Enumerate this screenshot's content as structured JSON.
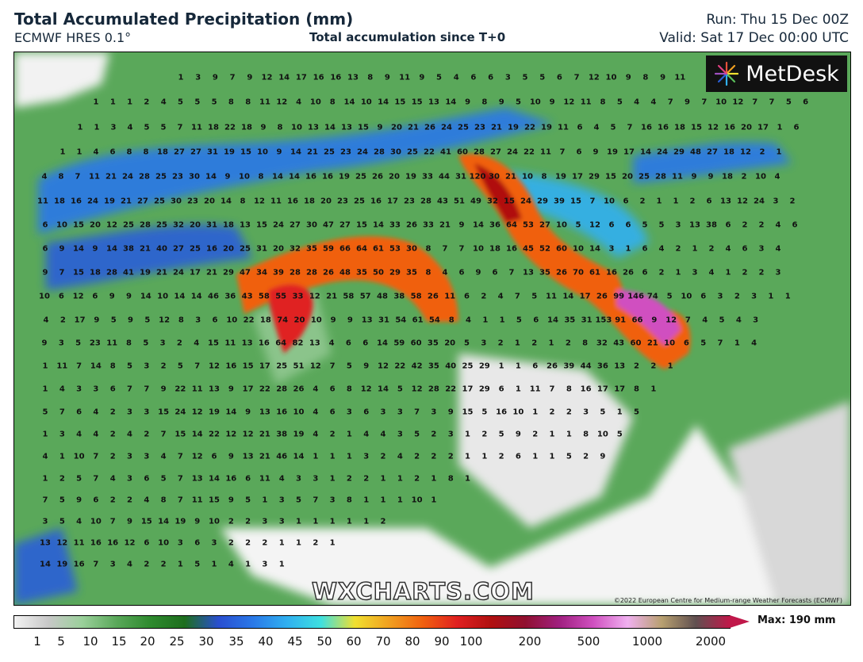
{
  "header": {
    "title": "Total Accumulated Precipitation (mm)",
    "model": "ECMWF HRES 0.1°",
    "subtitle": "Total accumulation since T+0",
    "run": "Run: Thu 15 Dec 00Z",
    "valid": "Valid: Sat 17 Dec 00:00 UTC"
  },
  "logo": {
    "text": "MetDesk",
    "icon": "metdesk-starburst-icon"
  },
  "watermark": "WXCHARTS.COM",
  "copyright": "©2022 European Centre for Medium-range Weather Forecasts (ECMWF)",
  "colorbar": {
    "max_label": "Max: 190 mm",
    "ticks": [
      "1",
      "5",
      "10",
      "15",
      "20",
      "25",
      "30",
      "35",
      "40",
      "45",
      "50",
      "60",
      "70",
      "80",
      "90",
      "100",
      "200",
      "500",
      "1000",
      "2000"
    ],
    "colors": [
      "#f2f2f2",
      "#c8c8c8",
      "#9ad09a",
      "#5aa85a",
      "#2e8a2e",
      "#1e6e1e",
      "#2a4fd0",
      "#2a78e8",
      "#30b0f0",
      "#3ee0e0",
      "#f0e030",
      "#f0a020",
      "#f06010",
      "#e02020",
      "#b01010",
      "#901030",
      "#a02080",
      "#d050c0",
      "#f0b0f0",
      "#b8a070",
      "#605050",
      "#c0184a"
    ]
  },
  "map_values": {
    "rows": [
      [
        "1",
        "3",
        "9",
        "7",
        "9",
        "12",
        "14",
        "17",
        "16",
        "16",
        "13",
        "8",
        "9",
        "11",
        "9",
        "5",
        "4",
        "6",
        "6",
        "3",
        "5",
        "5",
        "6",
        "7",
        "12",
        "10",
        "9",
        "8",
        "9",
        "11"
      ],
      [
        "1",
        "1",
        "1",
        "2",
        "4",
        "5",
        "5",
        "5",
        "8",
        "8",
        "11",
        "12",
        "4",
        "10",
        "8",
        "14",
        "10",
        "14",
        "15",
        "15",
        "13",
        "14",
        "9",
        "8",
        "9",
        "5",
        "10",
        "9",
        "12",
        "11",
        "8",
        "5",
        "4",
        "4",
        "7",
        "9",
        "7",
        "10",
        "12",
        "7",
        "7",
        "5",
        "6"
      ],
      [
        "1",
        "1",
        "3",
        "4",
        "5",
        "5",
        "7",
        "11",
        "18",
        "22",
        "18",
        "9",
        "8",
        "10",
        "13",
        "14",
        "13",
        "15",
        "9",
        "20",
        "21",
        "26",
        "24",
        "25",
        "23",
        "21",
        "19",
        "22",
        "19",
        "11",
        "6",
        "4",
        "5",
        "7",
        "16",
        "16",
        "18",
        "15",
        "12",
        "16",
        "20",
        "17",
        "1",
        "6"
      ],
      [
        "1",
        "1",
        "4",
        "6",
        "8",
        "8",
        "18",
        "27",
        "27",
        "31",
        "19",
        "15",
        "10",
        "9",
        "14",
        "21",
        "25",
        "23",
        "24",
        "28",
        "30",
        "25",
        "22",
        "41",
        "60",
        "28",
        "27",
        "24",
        "22",
        "11",
        "7",
        "6",
        "9",
        "19",
        "17",
        "14",
        "24",
        "29",
        "48",
        "27",
        "18",
        "12",
        "2",
        "1"
      ],
      [
        "4",
        "8",
        "7",
        "11",
        "21",
        "24",
        "28",
        "25",
        "23",
        "30",
        "14",
        "9",
        "10",
        "8",
        "14",
        "14",
        "16",
        "16",
        "19",
        "25",
        "26",
        "20",
        "19",
        "33",
        "44",
        "31",
        "120",
        "30",
        "21",
        "10",
        "8",
        "19",
        "17",
        "29",
        "15",
        "20",
        "25",
        "28",
        "11",
        "9",
        "9",
        "18",
        "2",
        "10",
        "4"
      ],
      [
        "11",
        "18",
        "16",
        "24",
        "19",
        "21",
        "27",
        "25",
        "30",
        "23",
        "20",
        "14",
        "8",
        "12",
        "11",
        "16",
        "18",
        "20",
        "23",
        "25",
        "16",
        "17",
        "23",
        "28",
        "43",
        "51",
        "49",
        "32",
        "15",
        "24",
        "29",
        "39",
        "15",
        "7",
        "10",
        "6",
        "2",
        "1",
        "1",
        "2",
        "6",
        "13",
        "12",
        "24",
        "3",
        "2"
      ],
      [
        "6",
        "10",
        "15",
        "20",
        "12",
        "25",
        "28",
        "25",
        "32",
        "20",
        "31",
        "18",
        "13",
        "15",
        "24",
        "27",
        "30",
        "47",
        "27",
        "15",
        "14",
        "33",
        "26",
        "33",
        "21",
        "9",
        "14",
        "36",
        "64",
        "53",
        "27",
        "10",
        "5",
        "12",
        "6",
        "6",
        "5",
        "5",
        "3",
        "13",
        "38",
        "6",
        "2",
        "2",
        "4",
        "6"
      ],
      [
        "6",
        "9",
        "14",
        "9",
        "14",
        "38",
        "21",
        "40",
        "27",
        "25",
        "16",
        "20",
        "25",
        "31",
        "20",
        "32",
        "35",
        "59",
        "66",
        "64",
        "61",
        "53",
        "30",
        "8",
        "7",
        "7",
        "10",
        "18",
        "16",
        "45",
        "52",
        "60",
        "10",
        "14",
        "3",
        "1",
        "6",
        "4",
        "2",
        "1",
        "2",
        "4",
        "6",
        "3",
        "4"
      ],
      [
        "9",
        "7",
        "15",
        "18",
        "28",
        "41",
        "19",
        "21",
        "24",
        "17",
        "21",
        "29",
        "47",
        "34",
        "39",
        "28",
        "28",
        "26",
        "48",
        "35",
        "50",
        "29",
        "35",
        "8",
        "4",
        "6",
        "9",
        "6",
        "7",
        "13",
        "35",
        "26",
        "70",
        "61",
        "16",
        "26",
        "6",
        "2",
        "1",
        "3",
        "4",
        "1",
        "2",
        "2",
        "3"
      ],
      [
        "10",
        "6",
        "12",
        "6",
        "9",
        "9",
        "14",
        "10",
        "14",
        "14",
        "46",
        "36",
        "43",
        "58",
        "55",
        "33",
        "12",
        "21",
        "58",
        "57",
        "48",
        "38",
        "58",
        "26",
        "11",
        "6",
        "2",
        "4",
        "7",
        "5",
        "11",
        "14",
        "17",
        "26",
        "99",
        "146",
        "74",
        "5",
        "10",
        "6",
        "3",
        "2",
        "3",
        "1",
        "1"
      ],
      [
        "4",
        "2",
        "17",
        "9",
        "5",
        "9",
        "5",
        "12",
        "8",
        "3",
        "6",
        "10",
        "22",
        "18",
        "74",
        "20",
        "10",
        "9",
        "9",
        "13",
        "31",
        "54",
        "61",
        "54",
        "8",
        "4",
        "1",
        "1",
        "5",
        "6",
        "14",
        "35",
        "31",
        "153",
        "91",
        "66",
        "9",
        "12",
        "7",
        "4",
        "5",
        "4",
        "3"
      ],
      [
        "9",
        "3",
        "5",
        "23",
        "11",
        "8",
        "5",
        "3",
        "2",
        "4",
        "15",
        "11",
        "13",
        "16",
        "64",
        "82",
        "13",
        "4",
        "6",
        "6",
        "14",
        "59",
        "60",
        "35",
        "20",
        "5",
        "3",
        "2",
        "1",
        "2",
        "1",
        "2",
        "8",
        "32",
        "43",
        "60",
        "21",
        "10",
        "6",
        "5",
        "7",
        "1",
        "4"
      ],
      [
        "1",
        "11",
        "7",
        "14",
        "8",
        "5",
        "3",
        "2",
        "5",
        "7",
        "12",
        "16",
        "15",
        "17",
        "25",
        "51",
        "12",
        "7",
        "5",
        "9",
        "12",
        "22",
        "42",
        "35",
        "40",
        "25",
        "29",
        "1",
        "1",
        "6",
        "26",
        "39",
        "44",
        "36",
        "13",
        "2",
        "2",
        "1"
      ],
      [
        "1",
        "4",
        "3",
        "3",
        "6",
        "7",
        "7",
        "9",
        "22",
        "11",
        "13",
        "9",
        "17",
        "22",
        "28",
        "26",
        "4",
        "6",
        "8",
        "12",
        "14",
        "5",
        "12",
        "28",
        "22",
        "17",
        "29",
        "6",
        "1",
        "11",
        "7",
        "8",
        "16",
        "17",
        "17",
        "8",
        "1"
      ],
      [
        "5",
        "7",
        "6",
        "4",
        "2",
        "3",
        "3",
        "15",
        "24",
        "12",
        "19",
        "14",
        "9",
        "13",
        "16",
        "10",
        "4",
        "6",
        "3",
        "6",
        "3",
        "3",
        "7",
        "3",
        "9",
        "15",
        "5",
        "16",
        "10",
        "1",
        "2",
        "2",
        "3",
        "5",
        "1",
        "5"
      ],
      [
        "1",
        "3",
        "4",
        "4",
        "2",
        "4",
        "2",
        "7",
        "15",
        "14",
        "22",
        "12",
        "12",
        "21",
        "38",
        "19",
        "4",
        "2",
        "1",
        "4",
        "4",
        "3",
        "5",
        "2",
        "3",
        "1",
        "2",
        "5",
        "9",
        "2",
        "1",
        "1",
        "8",
        "10",
        "5"
      ],
      [
        "4",
        "1",
        "10",
        "7",
        "2",
        "3",
        "3",
        "4",
        "7",
        "12",
        "6",
        "9",
        "13",
        "21",
        "46",
        "14",
        "1",
        "1",
        "1",
        "3",
        "2",
        "4",
        "2",
        "2",
        "2",
        "1",
        "1",
        "2",
        "6",
        "1",
        "1",
        "5",
        "2",
        "9"
      ],
      [
        "1",
        "2",
        "5",
        "7",
        "4",
        "3",
        "6",
        "5",
        "7",
        "13",
        "14",
        "16",
        "6",
        "11",
        "4",
        "3",
        "3",
        "1",
        "2",
        "2",
        "1",
        "1",
        "2",
        "1",
        "8",
        "1"
      ],
      [
        "7",
        "5",
        "9",
        "6",
        "2",
        "2",
        "4",
        "8",
        "7",
        "11",
        "15",
        "9",
        "5",
        "1",
        "3",
        "5",
        "7",
        "3",
        "8",
        "1",
        "1",
        "1",
        "10",
        "1"
      ],
      [
        "3",
        "5",
        "4",
        "10",
        "7",
        "9",
        "15",
        "14",
        "19",
        "9",
        "10",
        "2",
        "2",
        "3",
        "3",
        "1",
        "1",
        "1",
        "1",
        "1",
        "2"
      ],
      [
        "13",
        "12",
        "11",
        "16",
        "16",
        "12",
        "6",
        "10",
        "3",
        "6",
        "3",
        "2",
        "2",
        "2",
        "1",
        "1",
        "2",
        "1"
      ],
      [
        "14",
        "19",
        "16",
        "7",
        "3",
        "4",
        "2",
        "2",
        "1",
        "5",
        "1",
        "4",
        "1",
        "3",
        "1"
      ]
    ]
  }
}
